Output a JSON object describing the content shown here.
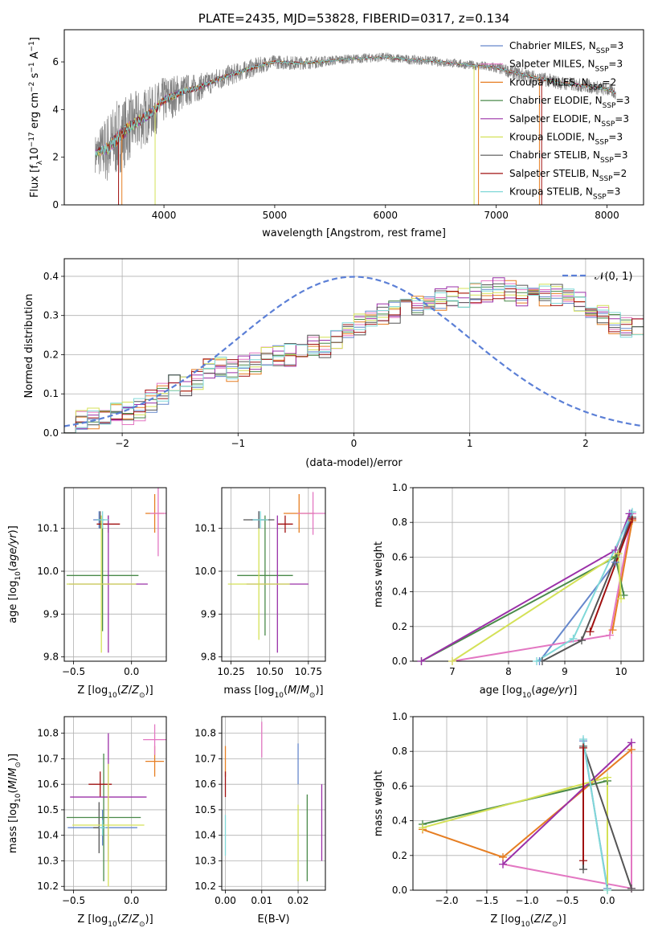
{
  "colors": {
    "chabrier_miles": "#6688cc",
    "salpeter_miles": "#e377c2",
    "kroupa_miles": "#e67e22",
    "chabrier_elodie": "#4a8a4a",
    "salpeter_elodie": "#9b30a8",
    "kroupa_elodie": "#d4e157",
    "chabrier_stelib": "#555555",
    "salpeter_stelib": "#a01010",
    "kroupa_stelib": "#80d8d8",
    "normal_curve": "#5b7fd6",
    "spectrum_data": "#808080"
  },
  "chart_data": [
    {
      "panel": "spectrum",
      "type": "line",
      "title": "PLATE=2435, MJD=53828, FIBERID=0317, z=0.134",
      "xlabel": "wavelength [Angstrom, rest frame]",
      "ylabel": "Flux [f",
      "xlim": [
        3100,
        8330
      ],
      "ylim": [
        0,
        7.35
      ],
      "xticks": [
        "4000",
        "5000",
        "6000",
        "7000",
        "8000"
      ],
      "yticks": [
        "0",
        "2",
        "4",
        "6"
      ],
      "legend_position": "upper-right",
      "legend": [
        {
          "prefix": "Chabrier MILES, N",
          "sub": "SSP",
          "suffix": "=3",
          "color_key": "chabrier_miles"
        },
        {
          "prefix": "Salpeter MILES, N",
          "sub": "SSP",
          "suffix": "=3",
          "color_key": "salpeter_miles"
        },
        {
          "prefix": "Kroupa MILES, N",
          "sub": "SSP",
          "suffix": "=2",
          "color_key": "kroupa_miles"
        },
        {
          "prefix": "Chabrier ELODIE, N",
          "sub": "SSP",
          "suffix": "=3",
          "color_key": "chabrier_elodie"
        },
        {
          "prefix": "Salpeter ELODIE, N",
          "sub": "SSP",
          "suffix": "=3",
          "color_key": "salpeter_elodie"
        },
        {
          "prefix": "Kroupa ELODIE, N",
          "sub": "SSP",
          "suffix": "=3",
          "color_key": "kroupa_elodie"
        },
        {
          "prefix": "Chabrier STELIB, N",
          "sub": "SSP",
          "suffix": "=3",
          "color_key": "chabrier_stelib"
        },
        {
          "prefix": "Salpeter STELIB, N",
          "sub": "SSP",
          "suffix": "=2",
          "color_key": "salpeter_stelib"
        },
        {
          "prefix": "Kroupa STELIB, N",
          "sub": "SSP",
          "suffix": "=3",
          "color_key": "kroupa_stelib"
        }
      ],
      "model_curve": {
        "x": [
          3380,
          3500,
          3600,
          3700,
          3800,
          3900,
          4000,
          4100,
          4200,
          4300,
          4400,
          4500,
          4600,
          4700,
          4800,
          4900,
          5000,
          5200,
          5400,
          5600,
          5800,
          6000,
          6200,
          6400,
          6600,
          6800,
          7000,
          7200,
          7400,
          7600,
          7800,
          8000,
          8080
        ],
        "y": [
          2.15,
          2.4,
          2.9,
          3.3,
          3.6,
          3.9,
          4.4,
          4.6,
          4.8,
          4.9,
          5.1,
          5.3,
          5.45,
          5.6,
          5.75,
          5.9,
          6.0,
          5.95,
          6.0,
          6.1,
          6.15,
          6.2,
          6.1,
          6.05,
          5.95,
          5.85,
          5.75,
          5.5,
          5.3,
          5.1,
          5.0,
          4.85,
          4.7
        ]
      },
      "noise_amplitude": [
        0.8,
        1.6,
        1.6,
        1.4,
        1.3,
        1.1,
        1.0,
        0.9,
        0.7,
        0.6,
        0.5,
        0.5,
        0.45,
        0.4,
        0.4,
        0.35,
        0.3,
        0.3,
        0.25,
        0.2,
        0.2,
        0.2,
        0.2,
        0.2,
        0.2,
        0.2,
        0.25,
        0.3,
        0.3,
        0.3,
        0.3,
        0.3,
        0.3
      ]
    },
    {
      "panel": "residuals",
      "type": "histogram",
      "xlabel": "(data-model)/error",
      "ylabel": "Normed distribution",
      "xlim": [
        -2.5,
        2.5
      ],
      "ylim": [
        0,
        0.445
      ],
      "xticks": [
        "−2",
        "−1",
        "0",
        "1",
        "2"
      ],
      "yticks": [
        "0.0",
        "0.1",
        "0.2",
        "0.3",
        "0.4"
      ],
      "legend_position": "upper-right",
      "legend": [
        {
          "label": "𝒩(0, 1)",
          "color_key": "normal_curve"
        }
      ],
      "bin_start": -2.5,
      "bin_width": 0.1,
      "base_values": [
        0.03,
        0.035,
        0.04,
        0.045,
        0.05,
        0.05,
        0.06,
        0.08,
        0.1,
        0.12,
        0.12,
        0.14,
        0.16,
        0.17,
        0.16,
        0.17,
        0.18,
        0.19,
        0.2,
        0.2,
        0.2,
        0.22,
        0.22,
        0.24,
        0.26,
        0.28,
        0.29,
        0.3,
        0.31,
        0.32,
        0.33,
        0.34,
        0.34,
        0.35,
        0.35,
        0.36,
        0.36,
        0.37,
        0.36,
        0.35,
        0.36,
        0.35,
        0.35,
        0.34,
        0.33,
        0.31,
        0.3,
        0.28,
        0.27,
        0.27,
        0.25,
        0.24,
        0.22,
        0.21,
        0.2,
        0.19,
        0.18,
        0.17,
        0.16,
        0.15,
        0.14,
        0.13,
        0.12,
        0.11,
        0.1,
        0.09,
        0.08,
        0.07,
        0.06,
        0.055,
        0.05,
        0.045,
        0.04,
        0.035,
        0.03,
        0.03
      ]
    },
    {
      "panel": "age_vs_Z",
      "type": "errorbar",
      "xlabel": "Z [log",
      "ylabel": "age  [log",
      "xlim": [
        -0.58,
        0.3
      ],
      "ylim": [
        9.79,
        10.195
      ],
      "xticks": [
        "−0.5",
        "0.0"
      ],
      "yticks": [
        "9.8",
        "9.9",
        "10.0",
        "10.1"
      ],
      "points": [
        {
          "key": "kroupa_miles",
          "x": 0.2,
          "xerr": 0.08,
          "y": 10.135,
          "yerr": 0.045
        },
        {
          "key": "salpeter_miles",
          "x": 0.23,
          "xerr": 0.07,
          "y": 10.135,
          "yerr": 0.1
        },
        {
          "key": "chabrier_miles",
          "x": -0.28,
          "xerr": 0.05,
          "y": 10.12,
          "yerr": 0.02
        },
        {
          "key": "chabrier_stelib",
          "x": -0.27,
          "xerr": 0.03,
          "y": 10.12,
          "yerr": 0.02
        },
        {
          "key": "chabrier_elodie",
          "x": -0.25,
          "xerr": 0.31,
          "y": 9.99,
          "yerr": 0.13
        },
        {
          "key": "salpeter_stelib",
          "x": -0.2,
          "xerr": 0.1,
          "y": 10.11,
          "yerr": 0.02
        },
        {
          "key": "salpeter_elodie",
          "x": -0.2,
          "xerr": 0.34,
          "y": 9.97,
          "yerr": 0.16
        },
        {
          "key": "kroupa_elodie",
          "x": -0.26,
          "xerr": 0.3,
          "y": 9.97,
          "yerr": 0.16
        },
        {
          "key": "kroupa_stelib",
          "x": -0.25,
          "xerr": 0.05,
          "y": 10.12,
          "yerr": 0.02
        }
      ]
    },
    {
      "panel": "age_vs_mass",
      "type": "errorbar",
      "xlabel": "mass [log",
      "ylabel": "",
      "xlim": [
        10.19,
        10.86
      ],
      "ylim": [
        9.79,
        10.195
      ],
      "xticks": [
        "10.25",
        "10.50",
        "10.75"
      ],
      "yticks": [
        "9.8",
        "9.9",
        "10.0",
        "10.1"
      ],
      "points": [
        {
          "key": "kroupa_miles",
          "x": 10.69,
          "xerr": 0.1,
          "y": 10.135,
          "yerr": 0.045
        },
        {
          "key": "salpeter_miles",
          "x": 10.78,
          "xerr": 0.1,
          "y": 10.135,
          "yerr": 0.05
        },
        {
          "key": "chabrier_miles",
          "x": 10.43,
          "xerr": 0.05,
          "y": 10.12,
          "yerr": 0.02
        },
        {
          "key": "chabrier_stelib",
          "x": 10.43,
          "xerr": 0.1,
          "y": 10.12,
          "yerr": 0.02
        },
        {
          "key": "chabrier_elodie",
          "x": 10.47,
          "xerr": 0.18,
          "y": 9.99,
          "yerr": 0.14
        },
        {
          "key": "salpeter_stelib",
          "x": 10.6,
          "xerr": 0.05,
          "y": 10.11,
          "yerr": 0.02
        },
        {
          "key": "salpeter_elodie",
          "x": 10.55,
          "xerr": 0.2,
          "y": 9.97,
          "yerr": 0.16
        },
        {
          "key": "kroupa_elodie",
          "x": 10.43,
          "xerr": 0.2,
          "y": 9.97,
          "yerr": 0.13
        },
        {
          "key": "kroupa_stelib",
          "x": 10.44,
          "xerr": 0.05,
          "y": 10.12,
          "yerr": 0.02
        }
      ]
    },
    {
      "panel": "weight_vs_age",
      "type": "line",
      "xlabel": "age  [log",
      "ylabel": "mass weight",
      "xlim": [
        6.3,
        10.4
      ],
      "ylim": [
        0,
        1
      ],
      "xticks": [
        "7",
        "8",
        "9",
        "10"
      ],
      "yticks": [
        "0.0",
        "0.2",
        "0.4",
        "0.6",
        "0.8",
        "1.0"
      ],
      "series": [
        {
          "key": "chabrier_miles",
          "points": [
            [
              8.55,
              0.0
            ],
            [
              9.9,
              0.57
            ],
            [
              10.18,
              0.85
            ]
          ]
        },
        {
          "key": "salpeter_miles",
          "points": [
            [
              7.0,
              0.0
            ],
            [
              9.8,
              0.15
            ],
            [
              10.2,
              0.85
            ]
          ]
        },
        {
          "key": "kroupa_miles",
          "points": [
            [
              9.85,
              0.18
            ],
            [
              10.2,
              0.81
            ]
          ]
        },
        {
          "key": "chabrier_elodie",
          "points": [
            [
              6.45,
              0.0
            ],
            [
              9.9,
              0.6
            ],
            [
              10.05,
              0.38
            ]
          ]
        },
        {
          "key": "salpeter_elodie",
          "points": [
            [
              6.45,
              0.0
            ],
            [
              9.9,
              0.64
            ],
            [
              10.15,
              0.85
            ]
          ]
        },
        {
          "key": "kroupa_elodie",
          "points": [
            [
              7.0,
              0.0
            ],
            [
              9.95,
              0.62
            ],
            [
              10.0,
              0.36
            ]
          ]
        },
        {
          "key": "chabrier_stelib",
          "points": [
            [
              8.6,
              0.0
            ],
            [
              9.3,
              0.12
            ],
            [
              10.2,
              0.83
            ]
          ]
        },
        {
          "key": "salpeter_stelib",
          "points": [
            [
              9.45,
              0.17
            ],
            [
              10.2,
              0.82
            ]
          ]
        },
        {
          "key": "kroupa_stelib",
          "points": [
            [
              8.5,
              0.0
            ],
            [
              9.15,
              0.13
            ],
            [
              10.2,
              0.86
            ]
          ]
        }
      ]
    },
    {
      "panel": "mass_vs_Z",
      "type": "errorbar",
      "xlabel": "Z [log",
      "ylabel": "mass [log",
      "xlim": [
        -0.58,
        0.3
      ],
      "ylim": [
        10.185,
        10.865
      ],
      "xticks": [
        "−0.5",
        "0.0"
      ],
      "yticks": [
        "10.2",
        "10.3",
        "10.4",
        "10.5",
        "10.6",
        "10.7",
        "10.8"
      ],
      "points": [
        {
          "key": "kroupa_miles",
          "x": 0.2,
          "xerr": 0.08,
          "y": 10.69,
          "yerr": 0.06
        },
        {
          "key": "salpeter_miles",
          "x": 0.2,
          "xerr": 0.1,
          "y": 10.775,
          "yerr": 0.06
        },
        {
          "key": "chabrier_miles",
          "x": -0.25,
          "xerr": 0.3,
          "y": 10.43,
          "yerr": 0.07
        },
        {
          "key": "chabrier_stelib",
          "x": -0.28,
          "xerr": 0.05,
          "y": 10.43,
          "yerr": 0.1
        },
        {
          "key": "chabrier_elodie",
          "x": -0.24,
          "xerr": 0.32,
          "y": 10.47,
          "yerr": 0.25
        },
        {
          "key": "salpeter_stelib",
          "x": -0.27,
          "xerr": 0.1,
          "y": 10.6,
          "yerr": 0.05
        },
        {
          "key": "salpeter_elodie",
          "x": -0.2,
          "xerr": 0.33,
          "y": 10.55,
          "yerr": 0.25
        },
        {
          "key": "kroupa_elodie",
          "x": -0.2,
          "xerr": 0.31,
          "y": 10.44,
          "yerr": 0.24
        },
        {
          "key": "kroupa_stelib",
          "x": -0.25,
          "xerr": 0.03,
          "y": 10.43,
          "yerr": 0.03
        }
      ]
    },
    {
      "panel": "mass_vs_EBV",
      "type": "errorbar",
      "xlabel": "E(B-V)",
      "ylabel": "",
      "xlim": [
        -0.001,
        0.0275
      ],
      "ylim": [
        10.185,
        10.865
      ],
      "xticks": [
        "0.00",
        "0.01",
        "0.02"
      ],
      "yticks": [
        "10.2",
        "10.3",
        "10.4",
        "10.5",
        "10.6",
        "10.7",
        "10.8"
      ],
      "points": [
        {
          "key": "kroupa_miles",
          "x": 0.0,
          "xerr": 0,
          "y": 10.69,
          "yerr": 0.06
        },
        {
          "key": "salpeter_miles",
          "x": 0.01,
          "xerr": 0,
          "y": 10.775,
          "yerr": 0.07
        },
        {
          "key": "chabrier_miles",
          "x": 0.02,
          "xerr": 0,
          "y": 10.68,
          "yerr": 0.08
        },
        {
          "key": "salpeter_stelib",
          "x": 0.0,
          "xerr": 0,
          "y": 10.6,
          "yerr": 0.05
        },
        {
          "key": "kroupa_stelib",
          "x": 0.0,
          "xerr": 0,
          "y": 10.4,
          "yerr": 0.08
        },
        {
          "key": "kroupa_elodie",
          "x": 0.02,
          "xerr": 0,
          "y": 10.37,
          "yerr": 0.15
        },
        {
          "key": "chabrier_elodie",
          "x": 0.0225,
          "xerr": 0,
          "y": 10.39,
          "yerr": 0.17
        },
        {
          "key": "salpeter_elodie",
          "x": 0.0265,
          "xerr": 0,
          "y": 10.45,
          "yerr": 0.15
        }
      ]
    },
    {
      "panel": "weight_vs_Z",
      "type": "line",
      "xlabel": "Z [log",
      "ylabel": "mass weight",
      "xlim": [
        -2.42,
        0.45
      ],
      "ylim": [
        0,
        1
      ],
      "xticks": [
        "−2.0",
        "−1.5",
        "−1.0",
        "−0.5",
        "0.0"
      ],
      "yticks": [
        "0.0",
        "0.2",
        "0.4",
        "0.6",
        "0.8",
        "1.0"
      ],
      "series": [
        {
          "key": "chabrier_miles",
          "points": [
            [
              -0.3,
              0.86
            ],
            [
              0.0,
              0.01
            ]
          ]
        },
        {
          "key": "salpeter_miles",
          "points": [
            [
              -1.3,
              0.15
            ],
            [
              0.3,
              0.01
            ],
            [
              0.3,
              0.85
            ]
          ]
        },
        {
          "key": "kroupa_miles",
          "points": [
            [
              -2.3,
              0.35
            ],
            [
              -1.3,
              0.19
            ],
            [
              0.3,
              0.81
            ]
          ]
        },
        {
          "key": "chabrier_elodie",
          "points": [
            [
              -2.3,
              0.38
            ],
            [
              0.0,
              0.63
            ]
          ]
        },
        {
          "key": "salpeter_elodie",
          "points": [
            [
              -1.3,
              0.15
            ],
            [
              0.3,
              0.85
            ]
          ]
        },
        {
          "key": "kroupa_elodie",
          "points": [
            [
              -2.3,
              0.36
            ],
            [
              0.0,
              0.65
            ],
            [
              0.0,
              0.0
            ]
          ]
        },
        {
          "key": "chabrier_stelib",
          "points": [
            [
              -0.3,
              0.12
            ],
            [
              -0.3,
              0.83
            ],
            [
              0.3,
              0.01
            ]
          ]
        },
        {
          "key": "salpeter_stelib",
          "points": [
            [
              -0.3,
              0.17
            ],
            [
              -0.3,
              0.82
            ]
          ]
        },
        {
          "key": "kroupa_stelib",
          "points": [
            [
              -0.3,
              0.87
            ],
            [
              0.0,
              0.0
            ]
          ]
        }
      ]
    }
  ]
}
